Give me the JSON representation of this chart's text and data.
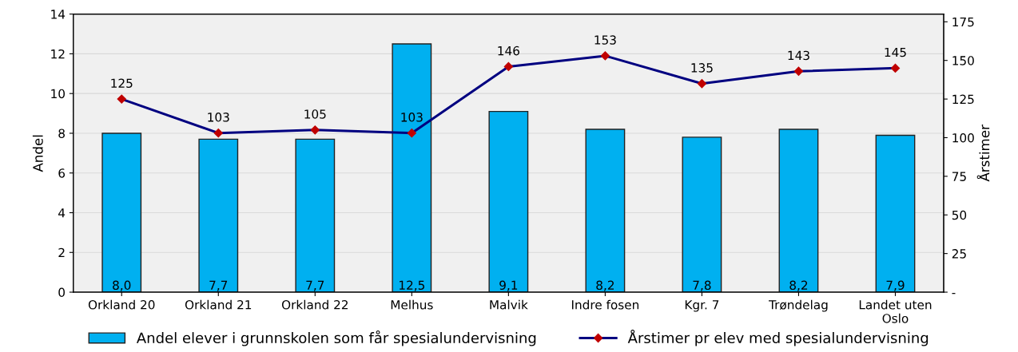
{
  "chart_data": {
    "type": "bar",
    "categories": [
      "Orkland 20",
      "Orkland 21",
      "Orkland 22",
      "Melhus",
      "Malvik",
      "Indre fosen",
      "Kgr. 7",
      "Trøndelag",
      "Landet uten\nOslo"
    ],
    "series": [
      {
        "name": "Andel elever i grunnskolen som får spesialundervisning",
        "color": "#00b0f0",
        "values": [
          8.0,
          7.7,
          7.7,
          12.5,
          9.1,
          8.2,
          7.8,
          8.2,
          7.9
        ],
        "value_labels": [
          "8,0",
          "7,7",
          "7,7",
          "12,5",
          "9,1",
          "8,2",
          "7,8",
          "8,2",
          "7,9"
        ]
      },
      {
        "name": "Årstimer pr elev med spesialundervisning",
        "type": "line",
        "axis": "y2",
        "color": "#000080",
        "marker": "diamond",
        "values": [
          125,
          103,
          105,
          103,
          146,
          153,
          135,
          143,
          145
        ],
        "value_labels": [
          "125",
          "103",
          "105",
          "103",
          "146",
          "153",
          "135",
          "143",
          "145"
        ]
      }
    ],
    "ylabel": "Andel",
    "y2label": "Årstimer",
    "ylim": [
      0,
      14
    ],
    "yticks": [
      0,
      2,
      4,
      6,
      8,
      10,
      12,
      14
    ],
    "y2lim": [
      0,
      180
    ],
    "y2ticks": [
      {
        "value": 0,
        "label": "-"
      },
      25,
      50,
      75,
      100,
      125,
      150,
      175
    ],
    "grid": "y",
    "legend": "bottom"
  }
}
